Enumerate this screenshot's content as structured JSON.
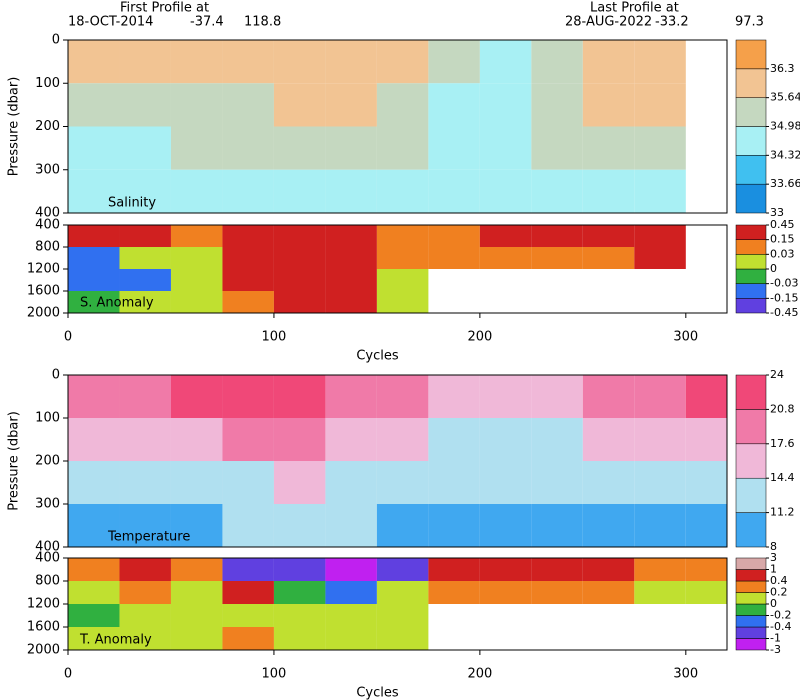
{
  "header": {
    "first_label": "First Profile at",
    "first_date": "18-OCT-2014",
    "first_lat": -37.4,
    "first_lon": 118.8,
    "last_label": "Last Profile at",
    "last_date": "28-AUG-2022",
    "last_lat": -33.2,
    "last_lon": 97.3
  },
  "chart_data": [
    {
      "type": "heatmap",
      "title": "Salinity",
      "ylabel": "Pressure (dbar)",
      "xlim": [
        0,
        320
      ],
      "ylim": [
        0,
        400
      ],
      "yticks": [
        0,
        100,
        200,
        300,
        400
      ],
      "xbins": [
        0,
        25,
        50,
        75,
        100,
        125,
        150,
        175,
        200,
        225,
        250,
        275,
        300
      ],
      "ybins": [
        0,
        100,
        200,
        300,
        400
      ],
      "values": [
        [
          36.0,
          35.9,
          35.7,
          36.0,
          36.1,
          36.0,
          35.8,
          35.0,
          34.8,
          35.6,
          35.9,
          36.1
        ],
        [
          35.5,
          35.4,
          35.3,
          35.6,
          35.7,
          35.7,
          35.4,
          34.7,
          34.7,
          35.3,
          35.7,
          35.7
        ],
        [
          34.9,
          34.8,
          35.0,
          35.1,
          35.2,
          35.2,
          35.0,
          34.6,
          34.6,
          35.0,
          35.2,
          35.2
        ],
        [
          34.5,
          34.5,
          34.6,
          34.7,
          34.8,
          34.8,
          34.6,
          34.5,
          34.5,
          34.6,
          34.8,
          34.8
        ]
      ],
      "colorbar": {
        "ticks": [
          33,
          33.66,
          34.32,
          34.98,
          35.64,
          36.3
        ],
        "colors": [
          "#1a8fe0",
          "#40c0f0",
          "#a8f0f4",
          "#c5d8c0",
          "#f2c493",
          "#f5a04a"
        ]
      }
    },
    {
      "type": "heatmap",
      "title": "S. Anomaly",
      "xlabel": "Cycles",
      "xlim": [
        0,
        320
      ],
      "xticks": [
        0,
        100,
        200,
        300
      ],
      "ylim": [
        400,
        2000
      ],
      "yticks": [
        400,
        800,
        1200,
        1600,
        2000
      ],
      "xbins": [
        0,
        25,
        50,
        75,
        100,
        125,
        150,
        175,
        200,
        225,
        250,
        275,
        300
      ],
      "ybins": [
        400,
        800,
        1200,
        1600,
        2000
      ],
      "values": [
        [
          0.2,
          0.2,
          0.1,
          0.3,
          0.3,
          0.3,
          0.1,
          0.1,
          0.2,
          0.2,
          0.3,
          0.2
        ],
        [
          -0.05,
          0.0,
          0.02,
          0.2,
          0.3,
          0.25,
          0.05,
          0.1,
          0.1,
          0.12,
          0.1,
          0.15
        ],
        [
          -0.1,
          -0.04,
          0.01,
          0.2,
          0.25,
          0.2,
          0.0,
          null,
          null,
          null,
          null,
          null
        ],
        [
          -0.03,
          0.0,
          0.02,
          0.1,
          0.2,
          0.15,
          0.01,
          null,
          null,
          null,
          null,
          null
        ]
      ],
      "colorbar": {
        "ticks": [
          -0.45,
          -0.15,
          -0.03,
          0,
          0.03,
          0.15,
          0.45
        ],
        "colors": [
          "#6040e0",
          "#3070f0",
          "#30b040",
          "#c0e030",
          "#f08020",
          "#d02020"
        ]
      }
    },
    {
      "type": "heatmap",
      "title": "Temperature",
      "ylabel": "Pressure (dbar)",
      "xlim": [
        0,
        320
      ],
      "ylim": [
        0,
        400
      ],
      "yticks": [
        0,
        100,
        200,
        300,
        400
      ],
      "xbins": [
        0,
        25,
        50,
        75,
        100,
        125,
        150,
        175,
        200,
        225,
        250,
        275,
        300,
        320
      ],
      "ybins": [
        0,
        100,
        200,
        300,
        400
      ],
      "values": [
        [
          19,
          18,
          21,
          21,
          22,
          20,
          19,
          16,
          15,
          16,
          18,
          19,
          21
        ],
        [
          16,
          15,
          17,
          18,
          19,
          17,
          16,
          14,
          13,
          14,
          15,
          16,
          17
        ],
        [
          13,
          12.5,
          13,
          14,
          15,
          14,
          13,
          12.5,
          12,
          12.5,
          13,
          13,
          12
        ],
        [
          11,
          10.5,
          11,
          11.5,
          12,
          11.5,
          11,
          11,
          10.5,
          11,
          11,
          11,
          10
        ]
      ],
      "colorbar": {
        "ticks": [
          8,
          11.2,
          14.4,
          17.6,
          20.8,
          24
        ],
        "colors": [
          "#40a8f0",
          "#b0e0f0",
          "#f0b8d8",
          "#f07aa8",
          "#f04878"
        ]
      }
    },
    {
      "type": "heatmap",
      "title": "T. Anomaly",
      "xlabel": "Cycles",
      "xlim": [
        0,
        320
      ],
      "xticks": [
        0,
        100,
        200,
        300
      ],
      "ylim": [
        400,
        2000
      ],
      "yticks": [
        400,
        800,
        1200,
        1600,
        2000
      ],
      "xbins": [
        0,
        25,
        50,
        75,
        100,
        125,
        150,
        175,
        200,
        225,
        250,
        275,
        300,
        320
      ],
      "ybins": [
        400,
        800,
        1200,
        1600,
        2000
      ],
      "values": [
        [
          0.3,
          0.5,
          0.2,
          -0.5,
          -0.8,
          -1.5,
          -0.5,
          0.5,
          0.4,
          0.5,
          0.4,
          0.3,
          0.3
        ],
        [
          0.1,
          0.2,
          0.1,
          0.5,
          -0.2,
          -0.4,
          0.0,
          0.3,
          0.3,
          0.3,
          0.2,
          0.1,
          0.1
        ],
        [
          -0.1,
          0.0,
          0.1,
          0.1,
          0.05,
          0.1,
          0.1,
          null,
          null,
          null,
          null,
          null,
          null
        ],
        [
          0.0,
          0.0,
          0.1,
          0.2,
          0.15,
          0.1,
          0.1,
          null,
          null,
          null,
          null,
          null,
          null
        ]
      ],
      "colorbar": {
        "ticks": [
          -3,
          -1,
          -0.4,
          -0.2,
          0,
          0.2,
          0.4,
          1,
          3
        ],
        "colors": [
          "#c020f0",
          "#6040e0",
          "#3070f0",
          "#30b040",
          "#c0e030",
          "#f08020",
          "#d02020",
          "#d8a8a8"
        ]
      }
    }
  ]
}
